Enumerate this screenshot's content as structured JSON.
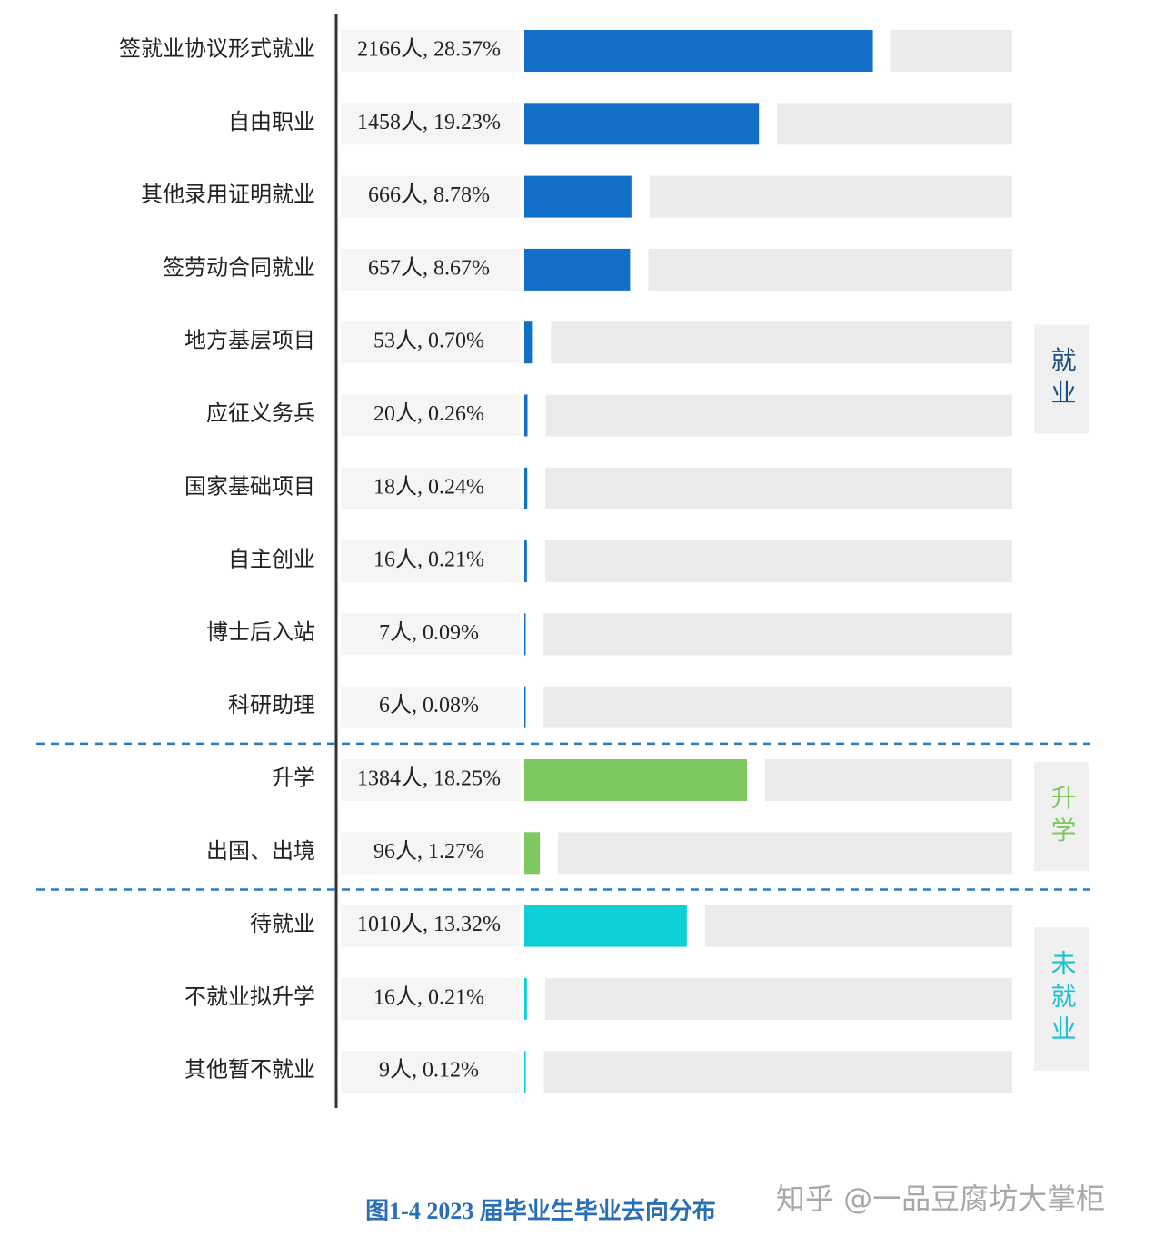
{
  "chart_data": {
    "type": "bar",
    "orientation": "horizontal",
    "title": "图1-4  2023 届毕业生毕业去向分布",
    "watermark": "知乎 @一品豆腐坊大掌柜",
    "categories": [
      "签就业协议形式就业",
      "自由职业",
      "其他录用证明就业",
      "签劳动合同就业",
      "地方基层项目",
      "应征义务兵",
      "国家基础项目",
      "自主创业",
      "博士后入站",
      "科研助理",
      "升学",
      "出国、出境",
      "待就业",
      "不就业拟升学",
      "其他暂不就业"
    ],
    "xlim": [
      0,
      40
    ],
    "series": [
      {
        "name": "就业",
        "color": "#1270c8",
        "values": [
          28.57,
          19.23,
          8.78,
          8.67,
          0.7,
          0.26,
          0.24,
          0.21,
          0.09,
          0.08,
          null,
          null,
          null,
          null,
          null
        ],
        "value_labels": [
          "2166人, 28.57%",
          "1458人, 19.23%",
          "666人, 8.78%",
          "657人, 8.67%",
          "53人, 0.70%",
          "20人, 0.26%",
          "18人, 0.24%",
          "16人, 0.21%",
          "7人, 0.09%",
          "6人, 0.08%",
          null,
          null,
          null,
          null,
          null
        ]
      },
      {
        "name": "升学",
        "color": "#7ec860",
        "values": [
          null,
          null,
          null,
          null,
          null,
          null,
          null,
          null,
          null,
          null,
          18.25,
          1.27,
          null,
          null,
          null
        ],
        "value_labels": [
          null,
          null,
          null,
          null,
          null,
          null,
          null,
          null,
          null,
          null,
          "1384人, 18.25%",
          "96人, 1.27%",
          null,
          null,
          null
        ]
      },
      {
        "name": "未就业",
        "color": "#0ecfd6",
        "values": [
          null,
          null,
          null,
          null,
          null,
          null,
          null,
          null,
          null,
          null,
          null,
          null,
          13.32,
          0.21,
          0.12
        ],
        "value_labels": [
          null,
          null,
          null,
          null,
          null,
          null,
          null,
          null,
          null,
          null,
          null,
          null,
          "1010人, 13.32%",
          "16人, 0.21%",
          "9人, 0.12%"
        ]
      }
    ]
  }
}
